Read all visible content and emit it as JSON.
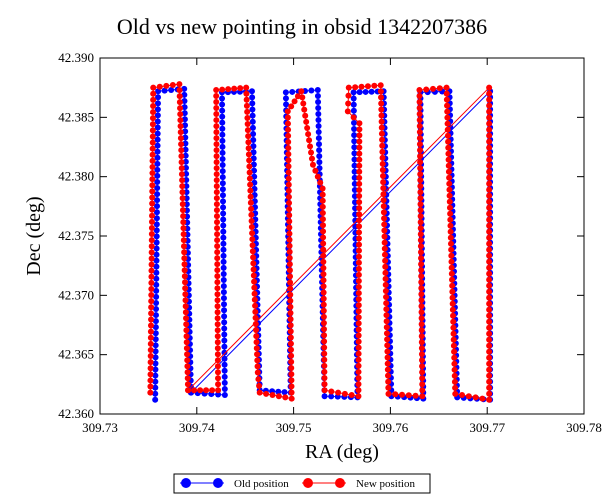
{
  "chart_data": {
    "type": "line",
    "title": "Old vs new pointing in obsid 1342207386",
    "xlabel": "RA (deg)",
    "ylabel": "Dec (deg)",
    "xlim": [
      309.73,
      309.78
    ],
    "ylim": [
      42.36,
      42.39
    ],
    "xticks": [
      "309.73",
      "309.74",
      "309.75",
      "309.76",
      "309.77",
      "309.78"
    ],
    "yticks": [
      "42.360",
      "42.365",
      "42.370",
      "42.375",
      "42.380",
      "42.385",
      "42.390"
    ],
    "legend_position": "bottom-center",
    "grid": false,
    "series": [
      {
        "name": "Old position",
        "color": "#0000ff",
        "points": [
          [
            309.7357,
            42.3612
          ],
          [
            309.736,
            42.3872
          ],
          [
            309.7387,
            42.3874
          ],
          [
            309.7394,
            42.3618
          ],
          [
            309.7429,
            42.3616
          ],
          [
            309.7426,
            42.3871
          ],
          [
            309.7457,
            42.3872
          ],
          [
            309.7465,
            42.362
          ],
          [
            309.7497,
            42.3618
          ],
          [
            309.7492,
            42.3871
          ],
          [
            309.7525,
            42.3873
          ],
          [
            309.7532,
            42.3615
          ],
          [
            309.7566,
            42.3614
          ],
          [
            309.7562,
            42.3871
          ],
          [
            309.7593,
            42.3872
          ],
          [
            309.7601,
            42.3615
          ],
          [
            309.7634,
            42.3613
          ],
          [
            309.7631,
            42.3871
          ],
          [
            309.7661,
            42.3872
          ],
          [
            309.7669,
            42.3614
          ],
          [
            309.7703,
            42.3612
          ],
          [
            309.7703,
            42.3872
          ],
          [
            309.7394,
            42.3618
          ]
        ]
      },
      {
        "name": "New position",
        "color": "#ff0000",
        "points": [
          [
            309.7352,
            42.3618
          ],
          [
            309.7355,
            42.3875
          ],
          [
            309.7382,
            42.3878
          ],
          [
            309.7391,
            42.362
          ],
          [
            309.7422,
            42.362
          ],
          [
            309.742,
            42.3873
          ],
          [
            309.7451,
            42.3875
          ],
          [
            309.7463,
            42.3635
          ],
          [
            309.7465,
            42.3618
          ],
          [
            309.7498,
            42.3613
          ],
          [
            309.7494,
            42.3855
          ],
          [
            309.7508,
            42.3872
          ],
          [
            309.752,
            42.381
          ],
          [
            309.753,
            42.379
          ],
          [
            309.7532,
            42.362
          ],
          [
            309.7567,
            42.3615
          ],
          [
            309.7568,
            42.3845
          ],
          [
            309.7556,
            42.3855
          ],
          [
            309.7557,
            42.3875
          ],
          [
            309.759,
            42.3877
          ],
          [
            309.7598,
            42.3617
          ],
          [
            309.7633,
            42.3615
          ],
          [
            309.763,
            42.3873
          ],
          [
            309.7658,
            42.3875
          ],
          [
            309.7667,
            42.3617
          ],
          [
            309.7702,
            42.3612
          ],
          [
            309.7702,
            42.3875
          ],
          [
            309.7391,
            42.362
          ]
        ]
      }
    ]
  }
}
